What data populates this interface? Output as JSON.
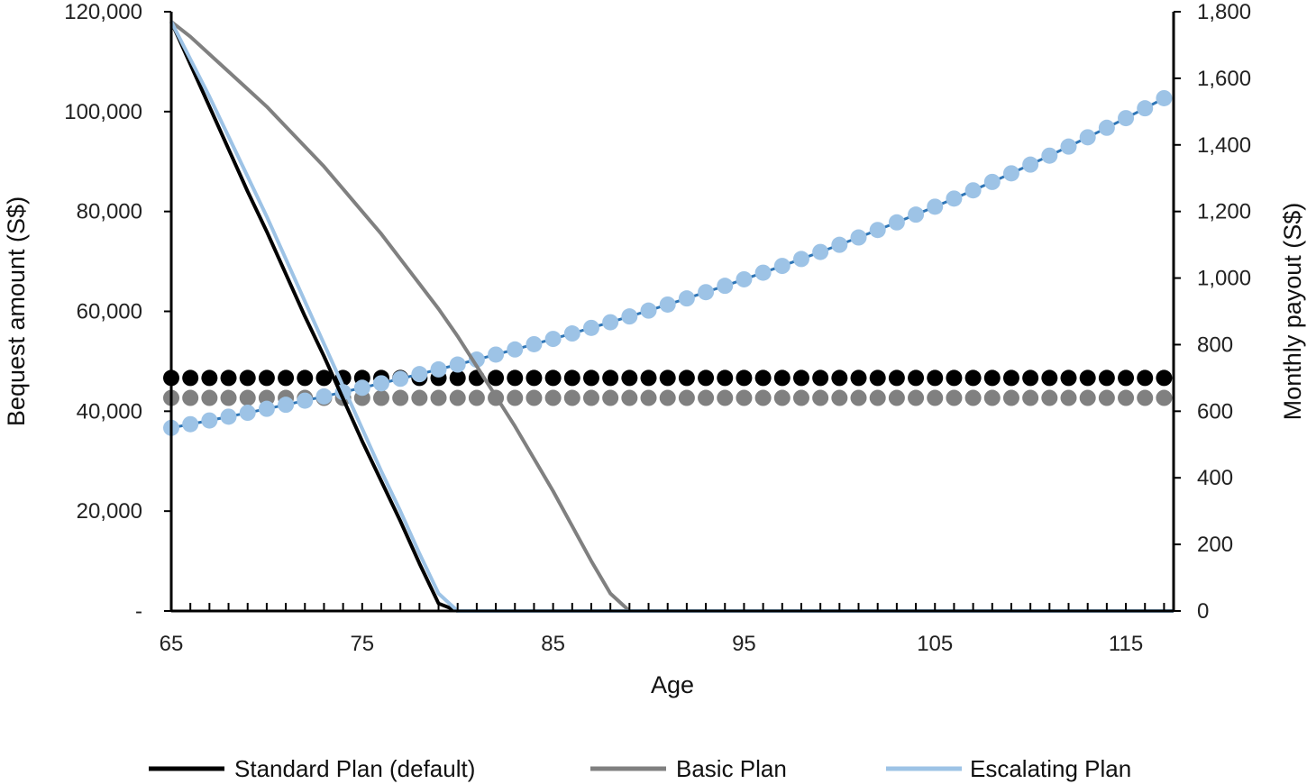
{
  "chart_data": {
    "type": "line",
    "title": "",
    "xlabel": "Age",
    "ylabel_left": "Bequest amount (S$)",
    "ylabel_right": "Monthly payout  (S$)",
    "x_ticks": [
      65,
      75,
      85,
      95,
      105,
      115
    ],
    "xlim": [
      65,
      117.5
    ],
    "y_left_ticks": [
      "-",
      "20,000",
      "40,000",
      "60,000",
      "80,000",
      "100,000",
      "120,000"
    ],
    "y_left_tick_values": [
      0,
      20000,
      40000,
      60000,
      80000,
      100000,
      120000
    ],
    "ylim_left": [
      0,
      120000
    ],
    "y_right_ticks": [
      "0",
      "200",
      "400",
      "600",
      "800",
      "1,000",
      "1,200",
      "1,400",
      "1,600",
      "1,800"
    ],
    "y_right_tick_values": [
      0,
      200,
      400,
      600,
      800,
      1000,
      1200,
      1400,
      1600,
      1800
    ],
    "ylim_right": [
      0,
      1800
    ],
    "grid": false,
    "legend_position": "bottom",
    "legend": [
      "Standard Plan (default)",
      "Basic Plan",
      "Escalating Plan"
    ],
    "colors": {
      "standard": "#000000",
      "basic": "#808080",
      "escalating": "#9dc3e6",
      "escalating_core": "#2e75b6"
    },
    "bequest_series": [
      {
        "legend_index": 0,
        "color": "#000000",
        "x": [
          65,
          66,
          67,
          68,
          69,
          70,
          71,
          72,
          73,
          74,
          75,
          76,
          77,
          78,
          79,
          80,
          81,
          117.5
        ],
        "y": [
          118000,
          109500,
          101000,
          92500,
          84000,
          76000,
          67500,
          59000,
          51000,
          42500,
          34000,
          26000,
          18000,
          9500,
          1500,
          0,
          0,
          0
        ]
      },
      {
        "legend_index": 1,
        "color": "#808080",
        "x": [
          65,
          66,
          67,
          68,
          69,
          70,
          71,
          72,
          73,
          74,
          75,
          76,
          77,
          78,
          79,
          80,
          81,
          82,
          83,
          84,
          85,
          86,
          87,
          88,
          89,
          90,
          91,
          92,
          117.5
        ],
        "y": [
          118000,
          115000,
          111500,
          108000,
          104500,
          101000,
          97000,
          93000,
          89000,
          84500,
          80000,
          75500,
          70500,
          65500,
          60500,
          55000,
          49000,
          43000,
          37000,
          30500,
          24000,
          17000,
          10000,
          3500,
          0,
          0,
          0,
          0,
          0
        ]
      },
      {
        "legend_index": 2,
        "color": "#9dc3e6",
        "x": [
          65,
          66,
          67,
          68,
          69,
          70,
          71,
          72,
          73,
          74,
          75,
          76,
          77,
          78,
          79,
          80,
          80.8,
          117.5
        ],
        "y": [
          118000,
          110500,
          103000,
          95000,
          87000,
          79000,
          70500,
          62000,
          53500,
          45000,
          36500,
          28000,
          20000,
          11500,
          3500,
          0,
          0,
          0
        ]
      }
    ],
    "payout_series": [
      {
        "name": "Standard Plan (default)",
        "color": "#000000",
        "start": 700,
        "growth": 0,
        "x_start": 65,
        "x_end": 117,
        "step": 1
      },
      {
        "name": "Basic Plan",
        "color": "#808080",
        "start": 640,
        "growth": 0,
        "x_start": 65,
        "x_end": 117,
        "step": 1
      },
      {
        "name": "Escalating Plan",
        "color": "#9dc3e6",
        "start": 550,
        "growth": 0.02,
        "x_start": 65,
        "x_end": 117,
        "step": 1
      }
    ]
  }
}
